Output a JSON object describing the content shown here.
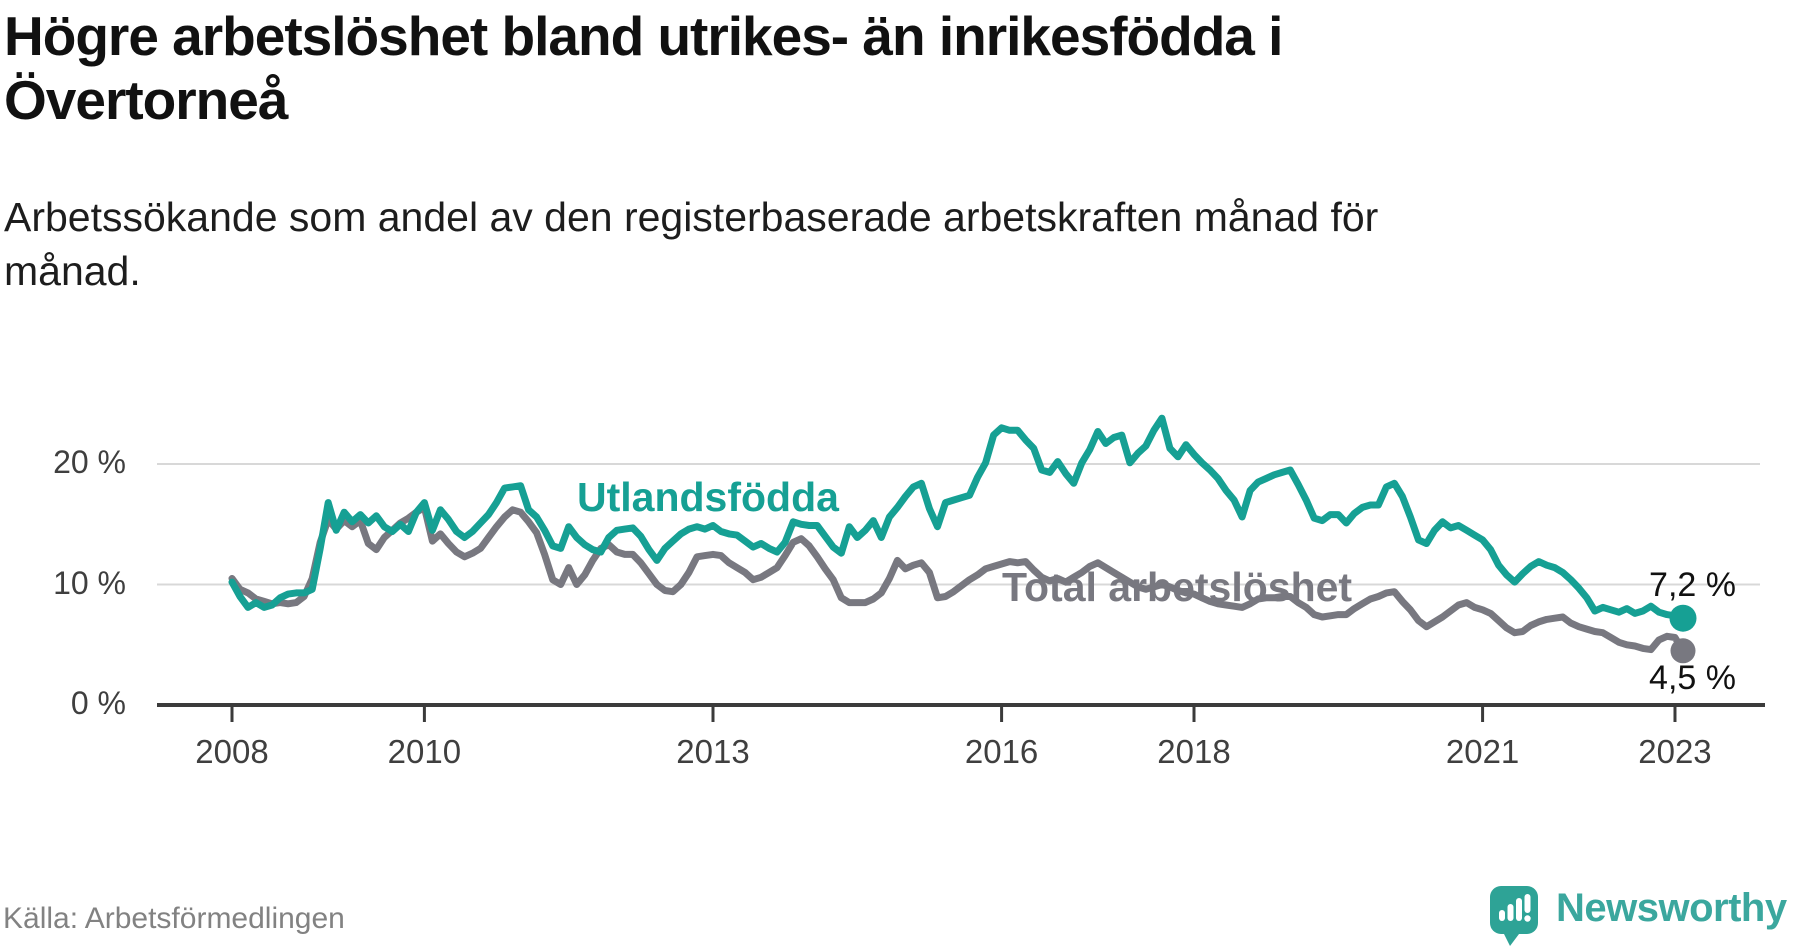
{
  "title": "Högre arbetslöshet bland utrikes- än inrikesfödda i\nÖvertorneå",
  "subtitle": "Arbetssökande som andel av den registerbaserade arbetskraften månad för\nmånad.",
  "source": "Källa: Arbetsförmedlingen",
  "logo": {
    "text": "Newsworthy"
  },
  "colors": {
    "teal": "#16a094",
    "gray": "#787880",
    "grid": "#d8d8d8",
    "axis": "#3b3b3b",
    "tick_label": "#3f3f3f",
    "title_text": "#111111",
    "source_text": "#828282",
    "logo_bubble": "#2ea396",
    "logo_text": "#3ba79e"
  },
  "chart_data": {
    "type": "line",
    "unit": "%",
    "x_start": "2008-01",
    "x_end": "2023-02",
    "x_interval": "monthly",
    "grid": "horizontal",
    "ylim": [
      0,
      25
    ],
    "y_ticks": [
      {
        "label": "0 %",
        "value": 0
      },
      {
        "label": "10 %",
        "value": 10
      },
      {
        "label": "20 %",
        "value": 20
      }
    ],
    "x_ticks": [
      {
        "label": "2008",
        "month": 0
      },
      {
        "label": "2010",
        "month": 24
      },
      {
        "label": "2013",
        "month": 60
      },
      {
        "label": "2016",
        "month": 96
      },
      {
        "label": "2018",
        "month": 120
      },
      {
        "label": "2021",
        "month": 156
      },
      {
        "label": "2023",
        "month": 180
      }
    ],
    "series": [
      {
        "name": "Utlandsfödda",
        "color": "#16a094",
        "end_label": "7,2 %",
        "end_value": 7.2,
        "values": [
          10.2,
          9.0,
          8.1,
          8.5,
          8.1,
          8.3,
          8.9,
          9.2,
          9.3,
          9.3,
          9.6,
          13.0,
          16.8,
          14.5,
          16.0,
          15.2,
          15.8,
          15.1,
          15.7,
          14.8,
          14.4,
          15.0,
          14.4,
          16.0,
          16.8,
          14.5,
          16.2,
          15.4,
          14.4,
          13.9,
          14.4,
          15.1,
          15.8,
          16.8,
          18.0,
          18.1,
          18.2,
          16.2,
          15.6,
          14.5,
          13.2,
          13.0,
          14.8,
          13.9,
          13.3,
          12.9,
          12.7,
          13.9,
          14.5,
          14.6,
          14.7,
          14.0,
          12.9,
          12.0,
          13.0,
          13.6,
          14.2,
          14.6,
          14.8,
          14.6,
          14.9,
          14.4,
          14.2,
          14.1,
          13.6,
          13.1,
          13.4,
          13.0,
          12.7,
          13.5,
          15.2,
          15.0,
          14.9,
          14.9,
          14.0,
          13.1,
          12.6,
          14.8,
          13.9,
          14.5,
          15.3,
          13.9,
          15.6,
          16.4,
          17.3,
          18.1,
          18.4,
          16.3,
          14.8,
          16.8,
          17.0,
          17.2,
          17.4,
          18.9,
          20.1,
          22.4,
          23.0,
          22.8,
          22.8,
          22.0,
          21.3,
          19.5,
          19.3,
          20.2,
          19.2,
          18.4,
          20.1,
          21.2,
          22.7,
          21.7,
          22.2,
          22.4,
          20.1,
          20.9,
          21.5,
          22.8,
          23.8,
          21.3,
          20.6,
          21.6,
          20.8,
          20.1,
          19.5,
          18.8,
          17.8,
          17.0,
          15.6,
          17.8,
          18.5,
          18.8,
          19.1,
          19.3,
          19.5,
          18.3,
          17.0,
          15.5,
          15.3,
          15.8,
          15.8,
          15.1,
          15.9,
          16.4,
          16.6,
          16.6,
          18.1,
          18.4,
          17.3,
          15.6,
          13.7,
          13.4,
          14.5,
          15.2,
          14.7,
          14.9,
          14.5,
          14.1,
          13.7,
          12.9,
          11.6,
          10.8,
          10.2,
          10.9,
          11.5,
          11.9,
          11.6,
          11.4,
          11.0,
          10.4,
          9.7,
          8.9,
          7.8,
          8.1,
          7.9,
          7.7,
          8.0,
          7.6,
          7.8,
          8.2,
          7.7,
          7.5,
          7.4,
          7.2
        ]
      },
      {
        "name": "Total arbetslöshet",
        "color": "#787880",
        "end_label": "4,5 %",
        "end_value": 4.5,
        "values": [
          10.5,
          9.6,
          9.3,
          8.8,
          8.6,
          8.4,
          8.5,
          8.4,
          8.5,
          9.0,
          10.5,
          13.5,
          15.4,
          14.6,
          15.3,
          14.8,
          15.3,
          13.4,
          12.9,
          13.9,
          14.5,
          15.1,
          15.5,
          16.0,
          16.4,
          13.6,
          14.2,
          13.4,
          12.7,
          12.3,
          12.6,
          13.0,
          13.9,
          14.8,
          15.6,
          16.2,
          16.0,
          15.2,
          14.3,
          12.5,
          10.4,
          10.0,
          11.4,
          10.0,
          10.8,
          12.0,
          13.0,
          13.3,
          12.7,
          12.5,
          12.5,
          11.8,
          10.9,
          10.0,
          9.5,
          9.4,
          10.0,
          11.0,
          12.3,
          12.4,
          12.5,
          12.4,
          11.8,
          11.4,
          11.0,
          10.4,
          10.6,
          11.0,
          11.4,
          12.4,
          13.5,
          13.8,
          13.2,
          12.3,
          11.3,
          10.4,
          8.9,
          8.5,
          8.5,
          8.5,
          8.8,
          9.3,
          10.5,
          12.0,
          11.3,
          11.6,
          11.8,
          11.0,
          8.9,
          9.0,
          9.4,
          9.9,
          10.4,
          10.8,
          11.3,
          11.5,
          11.7,
          11.9,
          11.8,
          11.9,
          11.2,
          10.6,
          10.3,
          10.5,
          10.2,
          10.6,
          11.0,
          11.5,
          11.8,
          11.4,
          11.0,
          10.6,
          10.2,
          9.8,
          9.6,
          9.8,
          10.0,
          9.8,
          9.5,
          9.3,
          9.2,
          8.9,
          8.6,
          8.4,
          8.3,
          8.2,
          8.1,
          8.4,
          8.8,
          8.9,
          8.9,
          9.0,
          9.0,
          8.5,
          8.1,
          7.5,
          7.3,
          7.4,
          7.5,
          7.5,
          8.0,
          8.4,
          8.8,
          9.0,
          9.3,
          9.4,
          8.6,
          7.9,
          7.0,
          6.5,
          6.9,
          7.3,
          7.8,
          8.3,
          8.5,
          8.1,
          7.9,
          7.6,
          7.0,
          6.4,
          6.0,
          6.1,
          6.6,
          6.9,
          7.1,
          7.2,
          7.3,
          6.8,
          6.5,
          6.3,
          6.1,
          6.0,
          5.6,
          5.2,
          5.0,
          4.9,
          4.7,
          4.6,
          5.4,
          5.7,
          5.6,
          4.5
        ]
      }
    ]
  }
}
